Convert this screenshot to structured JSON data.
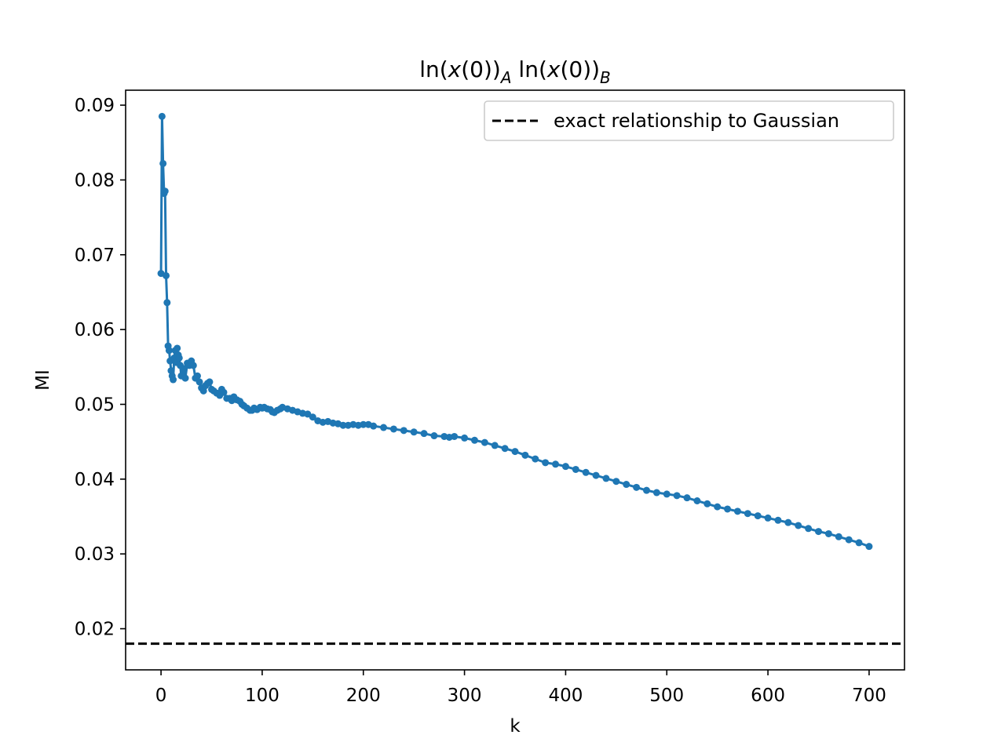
{
  "chart_data": {
    "type": "line",
    "title": {
      "parts": [
        {
          "text": "ln(",
          "italic": false,
          "sub": false
        },
        {
          "text": "x",
          "italic": true,
          "sub": false
        },
        {
          "text": "(0))",
          "italic": false,
          "sub": false
        },
        {
          "text": "A",
          "italic": true,
          "sub": true
        },
        {
          "text": " ln(",
          "italic": false,
          "sub": false
        },
        {
          "text": "x",
          "italic": true,
          "sub": false
        },
        {
          "text": "(0))",
          "italic": false,
          "sub": false
        },
        {
          "text": "B",
          "italic": true,
          "sub": true
        }
      ]
    },
    "xlabel": "k",
    "ylabel": "MI",
    "xlim": [
      -35,
      735
    ],
    "ylim": [
      0.0145,
      0.092
    ],
    "xticks": [
      0,
      100,
      200,
      300,
      400,
      500,
      600,
      700
    ],
    "yticks": [
      0.02,
      0.03,
      0.04,
      0.05,
      0.06,
      0.07,
      0.08,
      0.09
    ],
    "ytick_labels": [
      "0.02",
      "0.03",
      "0.04",
      "0.05",
      "0.06",
      "0.07",
      "0.08",
      "0.09"
    ],
    "xtick_labels": [
      "0",
      "100",
      "200",
      "300",
      "400",
      "500",
      "600",
      "700"
    ],
    "grid": false,
    "legend": {
      "placement": "top-right",
      "entries": [
        {
          "label": "exact relationship to Gaussian",
          "style": "dashed",
          "color": "#000000"
        }
      ]
    },
    "reference_line": {
      "y": 0.018,
      "color": "#000000",
      "style": "dashed"
    },
    "series": [
      {
        "color": "#1f77b4",
        "marker": "circle",
        "x": [
          0,
          1,
          2,
          3,
          4,
          5,
          6,
          7,
          8,
          9,
          10,
          11,
          12,
          13,
          14,
          15,
          16,
          17,
          18,
          19,
          20,
          22,
          24,
          26,
          28,
          30,
          32,
          34,
          36,
          38,
          40,
          42,
          44,
          46,
          48,
          50,
          52,
          55,
          58,
          60,
          62,
          65,
          68,
          70,
          72,
          75,
          78,
          80,
          82,
          85,
          88,
          90,
          92,
          95,
          98,
          100,
          102,
          105,
          108,
          110,
          112,
          115,
          118,
          120,
          125,
          130,
          135,
          140,
          145,
          150,
          155,
          160,
          165,
          170,
          175,
          180,
          185,
          190,
          195,
          200,
          205,
          210,
          220,
          230,
          240,
          250,
          260,
          270,
          280,
          285,
          290,
          300,
          310,
          320,
          330,
          340,
          350,
          360,
          370,
          380,
          390,
          400,
          410,
          420,
          430,
          440,
          450,
          460,
          470,
          480,
          490,
          500,
          510,
          520,
          530,
          540,
          550,
          560,
          570,
          580,
          590,
          600,
          610,
          620,
          630,
          640,
          650,
          660,
          670,
          680,
          690,
          700
        ],
        "y": [
          0.0675,
          0.0885,
          0.0822,
          0.0782,
          0.0785,
          0.0672,
          0.0636,
          0.0578,
          0.0572,
          0.0558,
          0.0545,
          0.0538,
          0.0533,
          0.0562,
          0.0572,
          0.0556,
          0.0575,
          0.0566,
          0.0562,
          0.0552,
          0.0538,
          0.0548,
          0.0535,
          0.0555,
          0.0552,
          0.0558,
          0.0552,
          0.0535,
          0.0538,
          0.053,
          0.0522,
          0.0518,
          0.0525,
          0.0528,
          0.053,
          0.052,
          0.0518,
          0.0515,
          0.0512,
          0.052,
          0.0516,
          0.0508,
          0.0508,
          0.0505,
          0.051,
          0.0506,
          0.0504,
          0.05,
          0.0498,
          0.0495,
          0.0492,
          0.0492,
          0.0495,
          0.0493,
          0.0496,
          0.0495,
          0.0496,
          0.0494,
          0.0493,
          0.049,
          0.0489,
          0.0492,
          0.0494,
          0.0496,
          0.0494,
          0.0492,
          0.049,
          0.0488,
          0.0487,
          0.0483,
          0.0478,
          0.0476,
          0.0477,
          0.0475,
          0.0474,
          0.0472,
          0.0472,
          0.0473,
          0.0472,
          0.0473,
          0.0473,
          0.0471,
          0.0469,
          0.0467,
          0.0465,
          0.0463,
          0.0461,
          0.0458,
          0.0457,
          0.0456,
          0.0457,
          0.0455,
          0.0452,
          0.0449,
          0.0445,
          0.0441,
          0.0437,
          0.0432,
          0.0427,
          0.0422,
          0.042,
          0.0417,
          0.0413,
          0.0409,
          0.0405,
          0.0401,
          0.0397,
          0.0393,
          0.0389,
          0.0385,
          0.0382,
          0.038,
          0.0378,
          0.0375,
          0.0371,
          0.0367,
          0.0363,
          0.036,
          0.0357,
          0.0354,
          0.0351,
          0.0348,
          0.0345,
          0.0342,
          0.0338,
          0.0334,
          0.033,
          0.0327,
          0.0323,
          0.0319,
          0.0315,
          0.031
        ]
      }
    ]
  }
}
